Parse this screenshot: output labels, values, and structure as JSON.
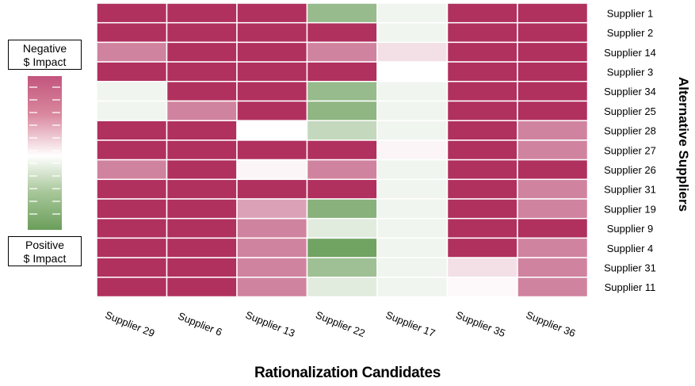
{
  "legend": {
    "top_label_line1": "Negative",
    "top_label_line2": "$ Impact",
    "bottom_label_line1": "Positive",
    "bottom_label_line2": "$ Impact",
    "colors": {
      "negative": "#b0305e",
      "neutral": "#ffffff",
      "positive": "#6a9e5a"
    }
  },
  "chart_data": {
    "type": "heatmap",
    "title": "",
    "xlabel": "Rationalization Candidates",
    "ylabel": "Alternative Suppliers",
    "x": [
      "Supplier 29",
      "Supplier 6",
      "Supplier 13",
      "Supplier 22",
      "Supplier 17",
      "Supplier 35",
      "Supplier 36"
    ],
    "y": [
      "Supplier 1",
      "Supplier 2",
      "Supplier 14",
      "Supplier 3",
      "Supplier 34",
      "Supplier 25",
      "Supplier 28",
      "Supplier 27",
      "Supplier 26",
      "Supplier 31",
      "Supplier 19",
      "Supplier 9",
      "Supplier 4",
      "Supplier 31",
      "Supplier 11"
    ],
    "value_range": [
      -1,
      1
    ],
    "value_meaning": "negative = negative $ impact (magenta), positive = positive $ impact (green)",
    "values": [
      [
        -1,
        -1,
        -1,
        0.7,
        0.1,
        -1,
        -1
      ],
      [
        -1,
        -1,
        -1,
        -1,
        0.1,
        -1,
        -1
      ],
      [
        -0.6,
        -1,
        -1,
        -0.6,
        -0.15,
        -1,
        -1
      ],
      [
        -1,
        -1,
        -1,
        -1,
        0,
        -1,
        -1
      ],
      [
        0.1,
        -1,
        -1,
        0.7,
        0.1,
        -1,
        -1
      ],
      [
        0.1,
        -0.6,
        -1,
        0.75,
        0.1,
        -1,
        -1
      ],
      [
        -1,
        -1,
        0,
        0.4,
        0.1,
        -1,
        -0.6
      ],
      [
        -1,
        -1,
        -1,
        -1,
        -0.05,
        -1,
        -0.6
      ],
      [
        -0.6,
        -1,
        -0.05,
        -0.6,
        0.1,
        -1,
        -1
      ],
      [
        -1,
        -1,
        -1,
        -1,
        0.1,
        -1,
        -0.6
      ],
      [
        -1,
        -1,
        -0.45,
        0.8,
        0.1,
        -1,
        -0.6
      ],
      [
        -1,
        -1,
        -0.6,
        0.2,
        0.1,
        -1,
        -1
      ],
      [
        -1,
        -1,
        -0.6,
        0.95,
        0.1,
        -1,
        -0.6
      ],
      [
        -1,
        -1,
        -0.6,
        0.65,
        0.1,
        -0.15,
        -0.6
      ],
      [
        -1,
        -1,
        -0.6,
        0.2,
        0.1,
        -0.03,
        -0.6
      ]
    ]
  }
}
